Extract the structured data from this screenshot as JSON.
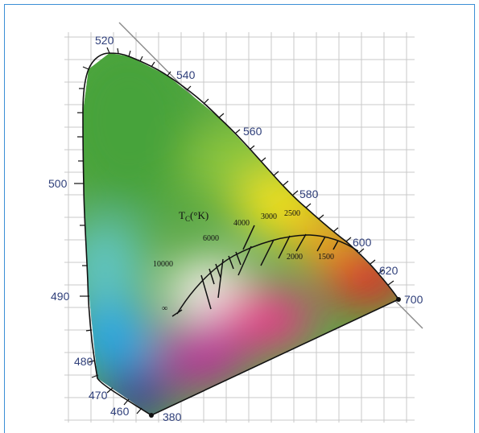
{
  "diagram": {
    "wavelength_labels": [
      "520",
      "540",
      "560",
      "580",
      "600",
      "620",
      "700",
      "380",
      "460",
      "470",
      "480",
      "490",
      "500"
    ],
    "planckian_label": "T",
    "planckian_label_sub": "C",
    "planckian_label_unit": "(°K)",
    "temperature_labels": [
      "10000",
      "6000",
      "4000",
      "3000",
      "2500",
      "2000",
      "1500"
    ],
    "infinity_label": "∞",
    "colors": {
      "frame": "#3b8fd6",
      "grid": "#c8c8c8",
      "label": "#2f3f7a",
      "green": "#4aa33a",
      "yellow": "#f2e21a",
      "red": "#e8202a",
      "blue": "#2aa6e6",
      "violet": "#3b3a9a"
    }
  }
}
